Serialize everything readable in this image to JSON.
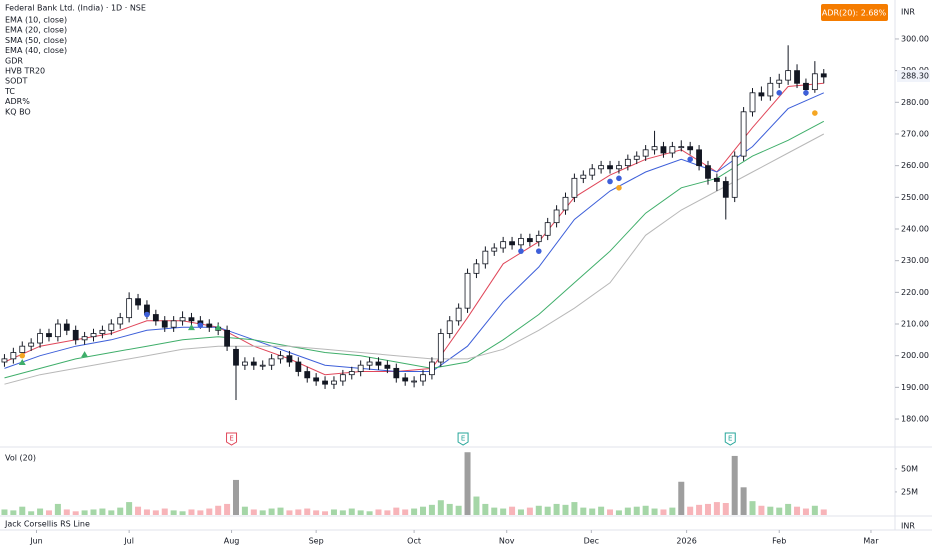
{
  "chart_data": {
    "type": "candlestick",
    "title": "Federal Bank Ltd. (India) · 1D · NSE",
    "indicators": [
      "EMA (10, close)",
      "EMA (20, close)",
      "SMA (50, close)",
      "EMA (40, close)",
      "GDR",
      "HVB TR20",
      "SODT",
      "TC",
      "ADR%",
      "KQ BO"
    ],
    "adr_badge": "ADR(20): 2.68%",
    "currency": "INR",
    "xlim": [
      -0.5,
      100
    ],
    "xticks": [
      {
        "value": 3.6,
        "label": "Jun"
      },
      {
        "value": 14,
        "label": "Jul"
      },
      {
        "value": 25.5,
        "label": "Aug"
      },
      {
        "value": 35,
        "label": "Sep"
      },
      {
        "value": 46,
        "label": "Oct"
      },
      {
        "value": 56.4,
        "label": "Nov"
      },
      {
        "value": 65.9,
        "label": "Dec"
      },
      {
        "value": 76.6,
        "label": "2026"
      },
      {
        "value": 87,
        "label": "Feb"
      },
      {
        "value": 97.3,
        "label": "Mar"
      }
    ],
    "ylim": [
      171.8,
      312.3
    ],
    "yticks": [
      {
        "value": 180,
        "label": "180.00"
      },
      {
        "value": 190,
        "label": "190.00"
      },
      {
        "value": 200,
        "label": "200.00"
      },
      {
        "value": 210,
        "label": "210.00"
      },
      {
        "value": 220,
        "label": "220.00"
      },
      {
        "value": 230,
        "label": "230.00"
      },
      {
        "value": 240,
        "label": "240.00"
      },
      {
        "value": 250,
        "label": "250.00"
      },
      {
        "value": 260,
        "label": "260.00"
      },
      {
        "value": 270,
        "label": "270.00"
      },
      {
        "value": 280,
        "label": "280.00"
      },
      {
        "value": 290,
        "label": "290.00"
      },
      {
        "value": 300,
        "label": "300.00"
      }
    ],
    "last_price": {
      "value": 288.3,
      "label": "288.30"
    },
    "open": [
      198,
      199,
      201,
      203,
      204,
      207,
      206,
      210,
      208,
      205,
      206,
      207,
      208,
      210,
      212,
      218,
      216,
      213,
      211,
      209,
      211,
      212,
      211,
      210,
      209,
      208,
      202,
      197,
      198,
      197,
      197,
      199,
      200,
      198,
      195,
      193,
      192,
      191,
      192,
      194,
      195,
      197,
      198,
      197,
      196,
      193,
      192,
      192,
      194,
      198,
      207,
      211,
      215,
      226,
      229,
      233,
      234,
      236,
      235,
      237,
      236,
      238,
      242,
      246,
      250,
      256,
      257,
      259,
      260,
      259,
      260,
      262,
      263,
      265,
      266,
      264,
      266,
      266,
      265,
      260,
      256,
      255,
      250,
      263,
      277,
      283,
      282,
      286,
      287,
      290,
      286,
      284,
      289
    ],
    "high": [
      200.5,
      202.5,
      204.5,
      205.5,
      208.5,
      208.5,
      211.5,
      211.5,
      209.5,
      207.5,
      208.5,
      209.5,
      211.5,
      213.5,
      220,
      219.5,
      217.5,
      214.5,
      212.5,
      212.5,
      214,
      213.5,
      212.5,
      211.5,
      210.5,
      209.5,
      203,
      199.5,
      199.5,
      198.5,
      200.5,
      201.5,
      201.5,
      199.5,
      196.5,
      194.5,
      193.5,
      193.5,
      195.5,
      196.5,
      198.5,
      199.5,
      199.5,
      198.5,
      197.5,
      194.5,
      193.5,
      195.5,
      199.5,
      208.5,
      212.5,
      216.5,
      227.5,
      230.5,
      234.5,
      235.5,
      237.5,
      237.5,
      238.5,
      238.5,
      239.5,
      243.5,
      247.5,
      251.5,
      257.5,
      258.5,
      260.5,
      261.5,
      261.5,
      261.5,
      263.5,
      264.5,
      266.5,
      271,
      267.5,
      267.5,
      268,
      267.5,
      266.5,
      261.5,
      257.5,
      256.5,
      264.5,
      278.5,
      284.5,
      285,
      288,
      289,
      298,
      292,
      287.5,
      293,
      290.5
    ],
    "low": [
      196.5,
      197.5,
      199.5,
      201.5,
      202.5,
      204.5,
      204.5,
      206.5,
      203.5,
      203.5,
      204.5,
      205.5,
      206.5,
      208.5,
      210.5,
      214.5,
      211.5,
      209.5,
      207.5,
      207.5,
      209.5,
      209.5,
      208.5,
      207.5,
      206.5,
      201.5,
      186,
      195.5,
      195.5,
      195.5,
      195.5,
      197.5,
      196.5,
      193.5,
      191.5,
      190.5,
      189.5,
      189.5,
      190.5,
      192.5,
      193.5,
      195.5,
      195.5,
      194.5,
      191.5,
      190.5,
      190,
      190.5,
      192.5,
      196.5,
      205.5,
      209.5,
      213.5,
      224.5,
      227.5,
      231.5,
      232.5,
      233.5,
      233.5,
      234.5,
      234.5,
      236.5,
      240.5,
      244.5,
      248.5,
      254.5,
      255.5,
      257.5,
      257.5,
      257.5,
      258.5,
      260.5,
      261.5,
      263.5,
      262.5,
      262.5,
      264.5,
      263.5,
      258.5,
      254,
      252,
      243,
      248.5,
      261.5,
      275.5,
      280.5,
      280.5,
      284.5,
      285.5,
      284.5,
      282,
      283,
      286
    ],
    "close": [
      199,
      201,
      203,
      204,
      207,
      206,
      210,
      208,
      205,
      206,
      207,
      208,
      210,
      212,
      218,
      216,
      213,
      211,
      209,
      211,
      212,
      211,
      210,
      209,
      208,
      203,
      197,
      198,
      197,
      197,
      199,
      200,
      198,
      195,
      193,
      192,
      191,
      192,
      194,
      195,
      197,
      198,
      197,
      196,
      193,
      192,
      192,
      194,
      198,
      207,
      211,
      215,
      226,
      229,
      233,
      234,
      236,
      235,
      237,
      236,
      238,
      242,
      246,
      250,
      256,
      257,
      259,
      260,
      259,
      260,
      262,
      263,
      265,
      266,
      264,
      266,
      266,
      265,
      260,
      256,
      255,
      250,
      263,
      277,
      283,
      282,
      286,
      287,
      290,
      286,
      284,
      289,
      288
    ],
    "series": [
      {
        "name": "EMA (10, close)",
        "color": "#e0475a",
        "x": [
          0,
          4,
          8,
          12,
          16,
          20,
          24,
          28,
          32,
          36,
          40,
          44,
          48,
          52,
          56,
          60,
          64,
          68,
          72,
          76,
          80,
          84,
          88,
          92
        ],
        "values": [
          198,
          203,
          205,
          207,
          211,
          211,
          209,
          203,
          199,
          194,
          195,
          195,
          196,
          212,
          229,
          236,
          250,
          257,
          262,
          265,
          258,
          272,
          285,
          286
        ]
      },
      {
        "name": "EMA (20, close)",
        "color": "#3d5fd9",
        "x": [
          0,
          4,
          8,
          12,
          16,
          20,
          24,
          28,
          32,
          36,
          40,
          44,
          48,
          52,
          56,
          60,
          64,
          68,
          72,
          76,
          80,
          84,
          88,
          92
        ],
        "values": [
          196,
          200,
          203,
          205,
          208,
          209,
          209,
          205,
          201,
          197,
          196,
          195,
          195,
          203,
          217,
          228,
          243,
          252,
          258,
          262,
          258,
          266,
          278,
          283
        ]
      },
      {
        "name": "SMA (50, close)",
        "color": "#3fae6a",
        "x": [
          0,
          4,
          8,
          12,
          16,
          20,
          24,
          28,
          32,
          36,
          40,
          44,
          48,
          52,
          56,
          60,
          64,
          68,
          72,
          76,
          80,
          84,
          88,
          92
        ],
        "values": [
          193,
          196,
          199,
          201,
          203,
          205,
          206,
          205,
          203,
          201,
          200,
          198,
          196,
          198,
          205,
          213,
          223,
          233,
          245,
          253,
          256,
          263,
          268,
          274
        ]
      },
      {
        "name": "EMA (40, close)",
        "color": "#b8b8b8",
        "x": [
          0,
          4,
          8,
          12,
          16,
          20,
          24,
          28,
          32,
          36,
          40,
          44,
          48,
          52,
          56,
          60,
          64,
          68,
          72,
          76,
          80,
          84,
          88,
          92
        ],
        "values": [
          191,
          194,
          196,
          198,
          200,
          202,
          203,
          203,
          203,
          202,
          201,
          200,
          199,
          199,
          202,
          208,
          215,
          223,
          238,
          246,
          252,
          258,
          264,
          270
        ]
      }
    ],
    "blue_dots": {
      "x": [
        16,
        22,
        58,
        60,
        68,
        69,
        77,
        87,
        90
      ],
      "values": [
        213,
        209.6,
        233,
        233,
        255,
        256,
        262,
        283,
        283
      ]
    },
    "orange_dots": {
      "x": [
        2,
        69,
        91
      ],
      "values": [
        200,
        253,
        276.6
      ]
    },
    "green_triangles": {
      "x": [
        2,
        9,
        21,
        24
      ],
      "values": [
        198,
        200.5,
        209,
        209
      ]
    },
    "earnings": {
      "x": [
        25.5,
        51.5,
        81.5
      ],
      "labels": [
        "E",
        "E",
        "E"
      ],
      "colors": [
        "#e0475a",
        "#26a69a",
        "#26a69a"
      ]
    },
    "volume_label": "Vol (20)",
    "volume": [
      6,
      5,
      9,
      4,
      7,
      5,
      12,
      6,
      4,
      5,
      6,
      7,
      5,
      8,
      14,
      9,
      6,
      5,
      7,
      5,
      4,
      6,
      5,
      7,
      10,
      12,
      38,
      9,
      6,
      5,
      7,
      8,
      5,
      6,
      7,
      5,
      4,
      6,
      5,
      7,
      5,
      4,
      6,
      5,
      8,
      6,
      7,
      9,
      11,
      16,
      12,
      10,
      68,
      20,
      12,
      8,
      7,
      9,
      6,
      8,
      10,
      9,
      12,
      11,
      14,
      8,
      7,
      9,
      6,
      5,
      8,
      9,
      10,
      7,
      6,
      8,
      36,
      9,
      11,
      12,
      14,
      13,
      64,
      30,
      15,
      10,
      9,
      8,
      12,
      9,
      7,
      10,
      6
    ],
    "vlim": [
      0,
      65
    ],
    "vticks": [
      {
        "value": 25,
        "label": "25M"
      },
      {
        "value": 50,
        "label": "50M"
      }
    ],
    "rs_label": "Jack Corsellis RS Line"
  }
}
